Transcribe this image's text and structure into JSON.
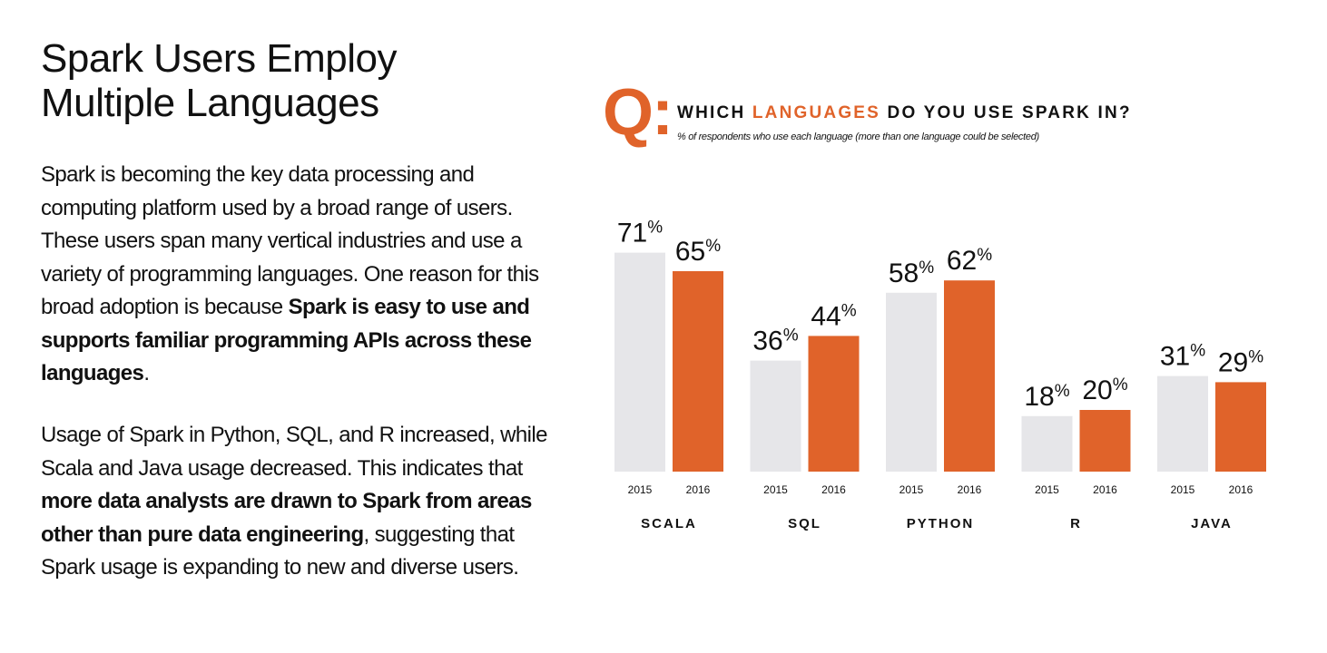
{
  "left": {
    "title_line1": "Spark Users Employ",
    "title_line2": "Multiple Languages",
    "p1_text1": "Spark is becoming the key data processing and computing platform used by a broad range of users. These users span many vertical industries and use a variety of programming languages. One reason for this broad adoption is because ",
    "p1_bold": "Spark is easy to use and supports familiar programming APIs across these languages",
    "p1_end": ".",
    "p2_text1": "Usage of Spark in Python, SQL, and R increased, while Scala and Java usage decreased. This indicates that ",
    "p2_bold": "more data analysts are drawn to Spark from areas other than pure data engineering",
    "p2_end": ",  suggesting that Spark usage is expanding to new and diverse users."
  },
  "question": {
    "letter": "Q:",
    "heading_pre": "WHICH ",
    "heading_accent": "LANGUAGES",
    "heading_post": " DO YOU USE SPARK IN?",
    "subtitle": "% of respondents who use each language (more than one language could be selected)"
  },
  "colors": {
    "accent": "#e0632a",
    "bar_2015": "#e6e6e9",
    "bar_2016": "#e0632a"
  },
  "chart_data": {
    "type": "bar",
    "categories": [
      "SCALA",
      "SQL",
      "PYTHON",
      "R",
      "JAVA"
    ],
    "series": [
      {
        "name": "2015",
        "values": [
          71,
          36,
          58,
          18,
          31
        ]
      },
      {
        "name": "2016",
        "values": [
          65,
          44,
          62,
          20,
          29
        ]
      }
    ],
    "value_suffix": "%",
    "ylim": [
      0,
      100
    ],
    "grid": false
  }
}
